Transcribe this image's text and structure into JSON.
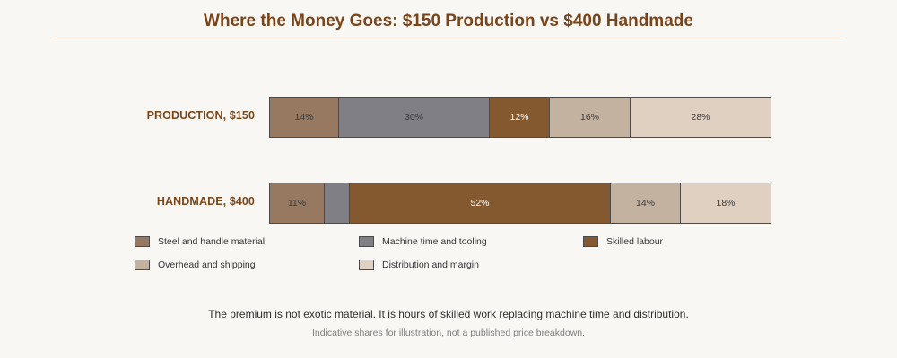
{
  "title": "Where the Money Goes: $150 Production vs $400 Handmade",
  "caption": "The premium is not exotic material. It is hours of skilled work replacing machine time and distribution.",
  "note": "Indicative shares for illustration, not a published price breakdown.",
  "chart_data": {
    "type": "bar",
    "orientation": "horizontal",
    "stacked": true,
    "normalized": true,
    "title": "Where the Money Goes: $150 Production vs $400 Handmade",
    "categories": [
      "PRODUCTION, $150",
      "HANDMADE, $400"
    ],
    "series": [
      {
        "name": "Steel and handle material",
        "color": "#977860",
        "values": [
          14,
          11
        ],
        "labels": [
          "14%",
          "11%"
        ]
      },
      {
        "name": "Machine time and tooling",
        "color": "#7f7f85",
        "values": [
          30,
          5
        ],
        "labels": [
          "30%",
          ""
        ]
      },
      {
        "name": "Skilled labour",
        "color": "#845930",
        "values": [
          12,
          52
        ],
        "labels": [
          "12%",
          "52%"
        ]
      },
      {
        "name": "Overhead and shipping",
        "color": "#c4b2a0",
        "values": [
          16,
          14
        ],
        "labels": [
          "16%",
          "14%"
        ]
      },
      {
        "name": "Distribution and margin",
        "color": "#e0d0c2",
        "values": [
          28,
          18
        ],
        "labels": [
          "28%",
          "18%"
        ]
      }
    ],
    "xlim": [
      0,
      100
    ],
    "legend_position": "bottom",
    "grid": false
  }
}
